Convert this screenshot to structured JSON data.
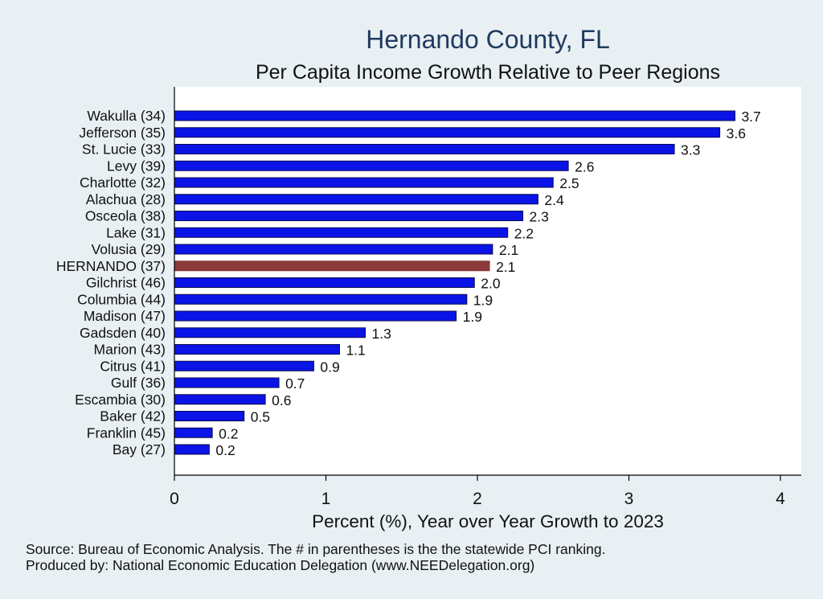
{
  "chart_data": {
    "type": "bar",
    "orientation": "horizontal",
    "title": "Hernando County, FL",
    "subtitle": "Per Capita Income Growth Relative to Peer Regions",
    "xlabel": "Percent (%), Year over Year Growth to 2023",
    "ylabel": "",
    "xlim": [
      0,
      4
    ],
    "xticks": [
      0,
      1,
      2,
      3,
      4
    ],
    "grid": false,
    "categories": [
      "Wakulla (34)",
      "Jefferson (35)",
      "St. Lucie (33)",
      "Levy (39)",
      "Charlotte (32)",
      "Alachua (28)",
      "Osceola (38)",
      "Lake (31)",
      "Volusia (29)",
      "HERNANDO (37)",
      "Gilchrist (46)",
      "Columbia (44)",
      "Madison (47)",
      "Gadsden (40)",
      "Marion (43)",
      "Citrus (41)",
      "Gulf (36)",
      "Escambia (30)",
      "Baker (42)",
      "Franklin (45)",
      "Bay (27)"
    ],
    "values": [
      3.7,
      3.6,
      3.3,
      2.6,
      2.5,
      2.4,
      2.3,
      2.2,
      2.1,
      2.08,
      1.98,
      1.93,
      1.86,
      1.26,
      1.09,
      0.92,
      0.69,
      0.6,
      0.46,
      0.25,
      0.23
    ],
    "value_labels": [
      "3.7",
      "3.6",
      "3.3",
      "2.6",
      "2.5",
      "2.4",
      "2.3",
      "2.2",
      "2.1",
      "2.1",
      "2.0",
      "1.9",
      "1.9",
      "1.3",
      "1.1",
      "0.9",
      "0.7",
      "0.6",
      "0.5",
      "0.2",
      "0.2"
    ],
    "highlight_index": 9,
    "colors": {
      "bar": "#0a14e6",
      "highlight": "#8b3a3a",
      "bar_edge": "#0a0a50",
      "plot_bg": "#ffffff",
      "page_bg": "#e9f0f4",
      "title": "#1f3a5f"
    }
  },
  "footer": {
    "source": "Source: Bureau of Economic Analysis. The # in parentheses is the the statewide PCI ranking.",
    "produced_by": "Produced by: National Economic Education Delegation (www.NEEDelegation.org)"
  }
}
